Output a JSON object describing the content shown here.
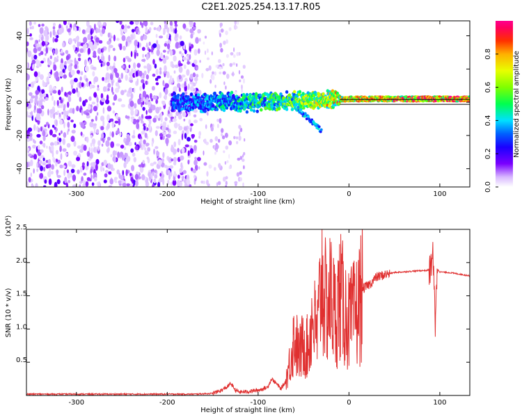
{
  "title": "C2E1.2025.254.13.17.R05",
  "chart_data": [
    {
      "type": "heatmap",
      "xlabel": "Height of straight line (km)",
      "ylabel": "Frequency (Hz)",
      "xlim": [
        -355,
        133
      ],
      "ylim": [
        -51,
        49
      ],
      "x_ticks": [
        -300,
        -200,
        -100,
        0,
        100
      ],
      "y_ticks": [
        -40,
        -20,
        0,
        20,
        40
      ],
      "colorbar": {
        "label": "Normalized spectral amplitude",
        "range": [
          0,
          1
        ],
        "ticks": [
          "0.0",
          "0.2",
          "0.4",
          "0.6",
          "0.8"
        ],
        "tick_values": [
          0,
          0.2,
          0.4,
          0.6,
          0.8
        ]
      },
      "colormap_stops": [
        "#ffffff",
        "#d8b8ff",
        "#7a00ff",
        "#0000ff",
        "#00e0ff",
        "#00ff50",
        "#b0ff00",
        "#ffe000",
        "#ff6000",
        "#ff0000",
        "#ff0080"
      ],
      "regions": [
        {
          "name": "noise",
          "x_range": [
            -355,
            -165
          ],
          "y_range": [
            -51,
            49
          ],
          "amplitude": 0.15
        },
        {
          "name": "sparse",
          "x_range": [
            -165,
            -115
          ],
          "y_range": [
            -51,
            49
          ],
          "amplitude": 0.08
        },
        {
          "name": "signal",
          "x_range": [
            -195,
            133
          ],
          "center_freq": [
            0,
            0,
            1,
            2,
            2
          ],
          "center_x": [
            -195,
            -100,
            -50,
            0,
            133
          ],
          "amplitude": [
            0.3,
            0.5,
            0.6,
            0.85,
            0.9
          ]
        },
        {
          "name": "tail",
          "x_range": [
            -60,
            -30
          ],
          "freq_end": -17
        }
      ],
      "line_at": 0
    },
    {
      "type": "line",
      "xlabel": "Height of straight line (km)",
      "ylabel": "SNR (10 * v/v)",
      "y_multiplier": "(x10⁴)",
      "xlim": [
        -355,
        133
      ],
      "ylim": [
        0,
        2.5
      ],
      "x_ticks": [
        -300,
        -200,
        -100,
        0,
        100
      ],
      "y_ticks": [
        0.5,
        1.0,
        1.5,
        2.0,
        2.5
      ],
      "color": "#e03030",
      "series": [
        {
          "x": [
            -355,
            -300,
            -250,
            -200,
            -170,
            -150,
            -140,
            -135,
            -130,
            -125,
            -120,
            -110,
            -100,
            -90,
            -85,
            -80,
            -75,
            -70,
            -65,
            -60,
            -55,
            -50,
            -45,
            -40,
            -35,
            -30,
            -25,
            -20,
            -15,
            -10,
            -5,
            0,
            5,
            10,
            15,
            20,
            25,
            30,
            40,
            50,
            60,
            70,
            80,
            85,
            90,
            92,
            94,
            95,
            96,
            98,
            100,
            110,
            120,
            133
          ],
          "y": [
            0.02,
            0.02,
            0.02,
            0.02,
            0.02,
            0.03,
            0.08,
            0.12,
            0.18,
            0.08,
            0.05,
            0.06,
            0.08,
            0.12,
            0.25,
            0.18,
            0.1,
            0.2,
            0.5,
            0.9,
            0.6,
            0.8,
            0.7,
            1.2,
            0.9,
            1.8,
            1.3,
            1.5,
            1.2,
            1.5,
            1.3,
            1.1,
            1.2,
            1.3,
            1.6,
            1.65,
            1.7,
            1.78,
            1.82,
            1.85,
            1.86,
            1.87,
            1.88,
            1.88,
            1.9,
            2.2,
            1.5,
            1.05,
            1.7,
            1.9,
            1.86,
            1.85,
            1.83,
            1.8
          ]
        }
      ]
    }
  ]
}
